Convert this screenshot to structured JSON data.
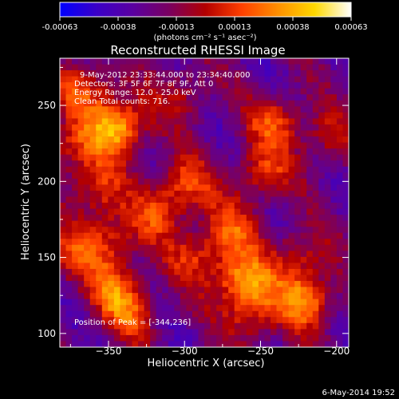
{
  "colorbar": {
    "ticks": [
      "-0.00063",
      "-0.00038",
      "-0.00013",
      "0.00013",
      "0.00038",
      "0.00063"
    ],
    "unit_label": "(photons cm⁻² s⁻¹ asec⁻²)",
    "colors": [
      "#0000ff",
      "#3a00c8",
      "#5a00a0",
      "#7a0060",
      "#b30000",
      "#ff4000",
      "#ff9000",
      "#ffd800",
      "#ffffff"
    ]
  },
  "annotations": {
    "time_range": "9-May-2012 23:33:44.000 to 23:34:40.000",
    "detectors": "Detectors: 3F 5F 6F 7F 8F 9F, Att 0",
    "energy_range": "Energy Range: 12.0 - 25.0 keV",
    "clean_counts": "Clean     Total counts: 716.",
    "peak_position": "Position of Peak = [-344,236]"
  },
  "footer": {
    "timestamp": "6-May-2014 19:52"
  },
  "chart_data": {
    "type": "heatmap",
    "title": "Reconstructed RHESSI Image",
    "xlabel": "Heliocentric X (arcsec)",
    "ylabel": "Heliocentric Y (arcsec)",
    "xlim": [
      -382,
      -192
    ],
    "ylim": [
      91,
      281
    ],
    "x_ticks": [
      -350,
      -300,
      -250,
      -200
    ],
    "y_ticks": [
      100,
      150,
      200,
      250
    ],
    "x_tick_labels": [
      "−350",
      "−300",
      "−250",
      "−200"
    ],
    "y_tick_labels": [
      "100",
      "150",
      "200",
      "250"
    ],
    "value_range": [
      -0.00063,
      0.00063
    ],
    "peak": [
      -344,
      236
    ],
    "blobs": [
      {
        "x": -344,
        "y": 236,
        "amp": 1.0
      },
      {
        "x": -366,
        "y": 262,
        "amp": 0.55
      },
      {
        "x": -375,
        "y": 222,
        "amp": 0.45
      },
      {
        "x": -358,
        "y": 195,
        "amp": 0.5
      },
      {
        "x": -352,
        "y": 162,
        "amp": 0.55
      },
      {
        "x": -346,
        "y": 130,
        "amp": 0.6
      },
      {
        "x": -335,
        "y": 112,
        "amp": 0.45
      },
      {
        "x": -318,
        "y": 178,
        "amp": 0.45
      },
      {
        "x": -300,
        "y": 198,
        "amp": 0.55
      },
      {
        "x": -292,
        "y": 150,
        "amp": 0.45
      },
      {
        "x": -270,
        "y": 168,
        "amp": 0.5
      },
      {
        "x": -262,
        "y": 135,
        "amp": 0.8
      },
      {
        "x": -255,
        "y": 112,
        "amp": 0.5
      },
      {
        "x": -250,
        "y": 205,
        "amp": 0.55
      },
      {
        "x": -240,
        "y": 240,
        "amp": 0.55
      },
      {
        "x": -226,
        "y": 150,
        "amp": 0.45
      },
      {
        "x": -220,
        "y": 122,
        "amp": 0.75
      },
      {
        "x": -205,
        "y": 228,
        "amp": 0.4
      },
      {
        "x": -300,
        "y": 258,
        "amp": 0.35
      },
      {
        "x": -380,
        "y": 150,
        "amp": 0.4
      }
    ]
  }
}
